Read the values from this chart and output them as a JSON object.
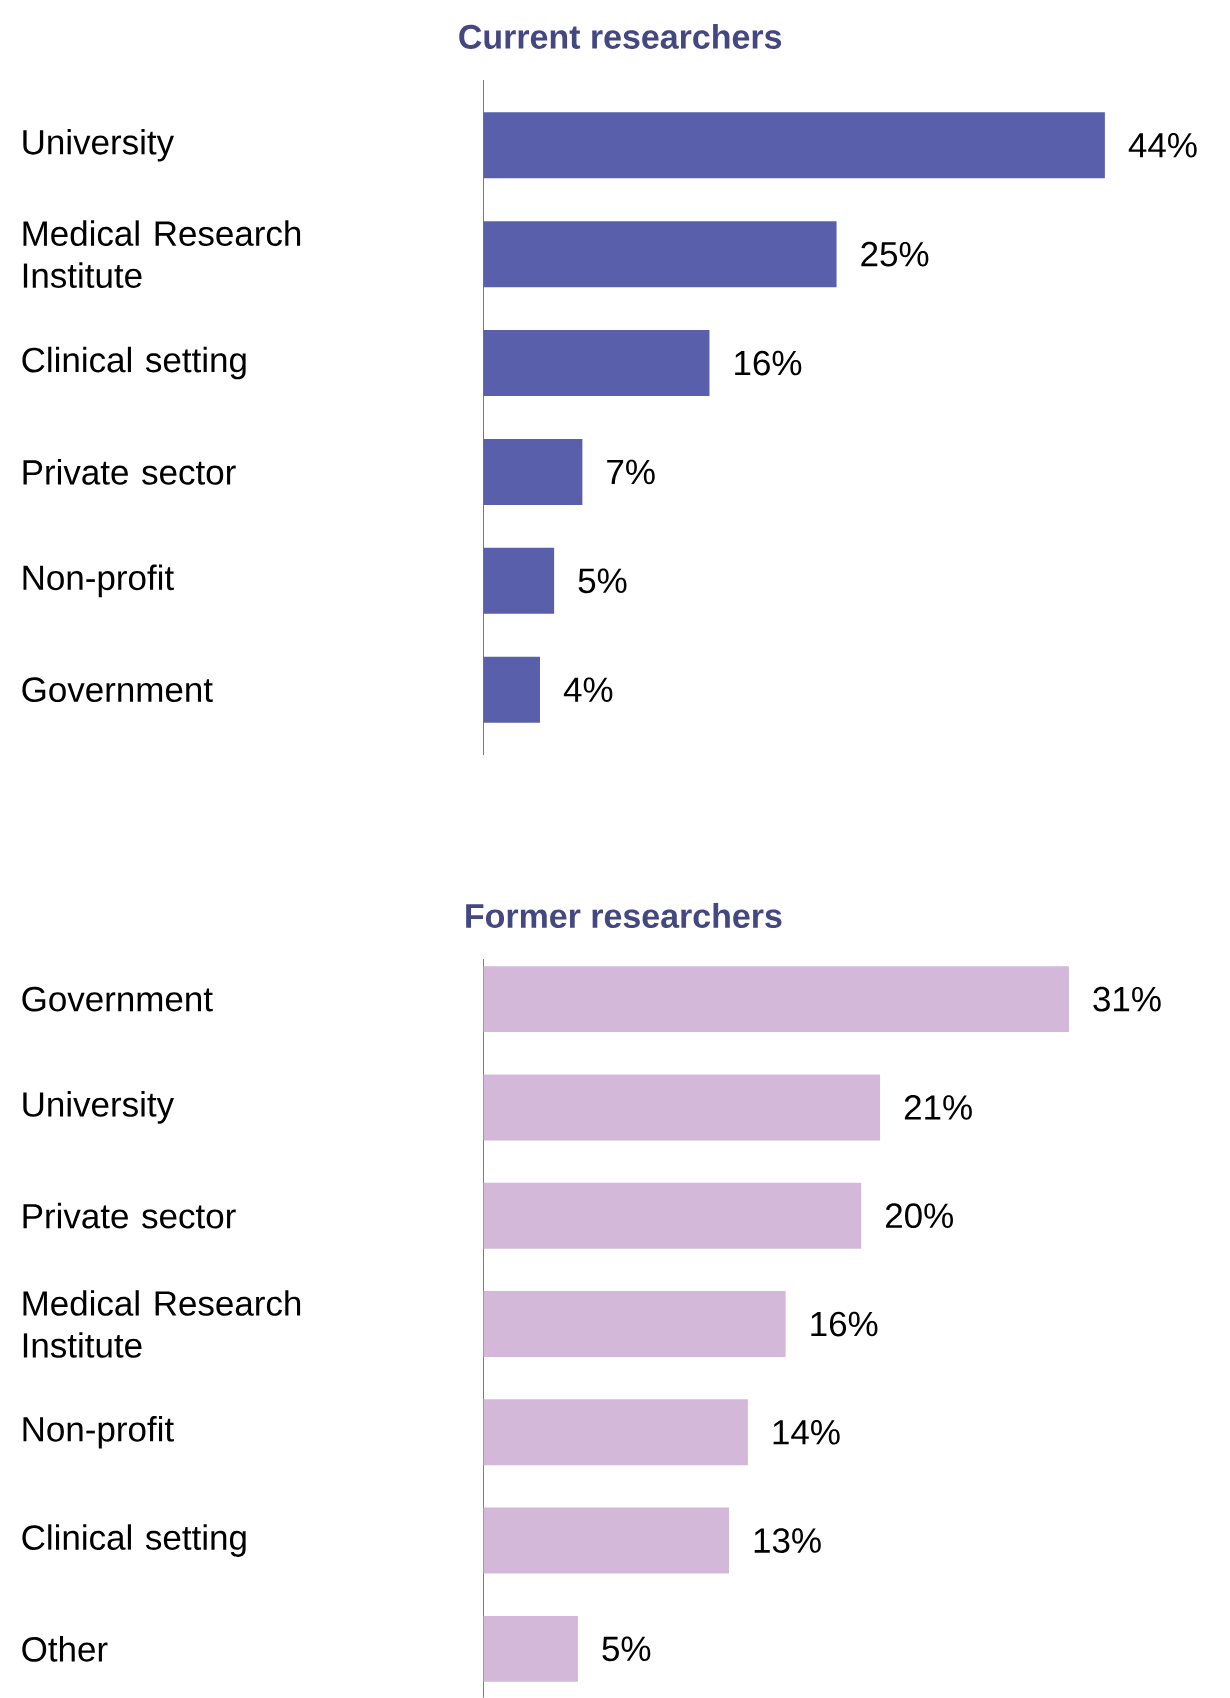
{
  "chart_data": [
    {
      "type": "bar",
      "orientation": "horizontal",
      "title": "Current researchers",
      "categories": [
        "University",
        "Medical Research Institute",
        "Clinical setting",
        "Private sector",
        "Non-profit",
        "Government"
      ],
      "values": [
        44,
        25,
        16,
        7,
        5,
        4
      ],
      "value_labels": [
        "44%",
        "25%",
        "16%",
        "7%",
        "5%",
        "4%"
      ],
      "color": "#5a5fab"
    },
    {
      "type": "bar",
      "orientation": "horizontal",
      "title": "Former researchers",
      "categories": [
        "Government",
        "University",
        "Private sector",
        "Medical Research Institute",
        "Non-profit",
        "Clinical setting",
        "Other"
      ],
      "values": [
        31,
        21,
        20,
        16,
        14,
        13,
        5
      ],
      "value_labels": [
        "31%",
        "21%",
        "20%",
        "16%",
        "14%",
        "13%",
        "5%"
      ],
      "color": "#d3b8d9"
    }
  ]
}
